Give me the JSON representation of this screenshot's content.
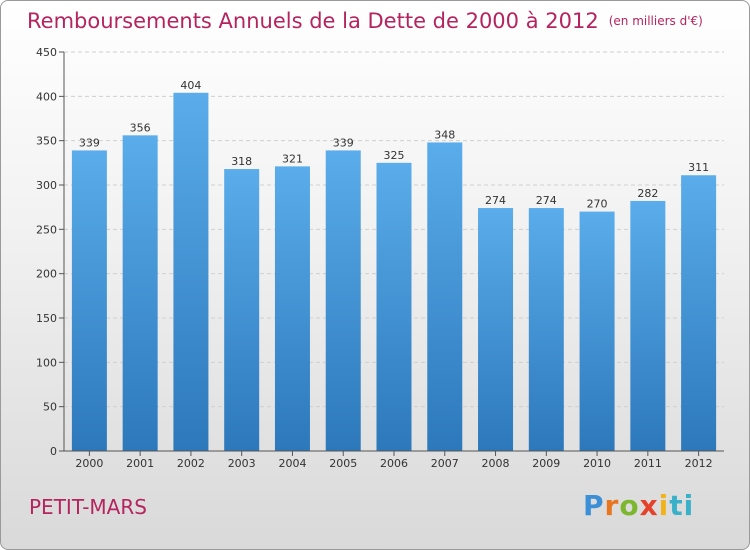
{
  "title": "Remboursements Annuels de la Dette de 2000 à 2012",
  "unit": "(en milliers d'€)",
  "city": "PETIT-MARS",
  "brand": {
    "letters": [
      "P",
      "r",
      "o",
      "x",
      "i",
      "ti"
    ]
  },
  "colors": {
    "title": "#b5245e",
    "bar_top": "#5aacea",
    "bar_bottom": "#2c78bb"
  },
  "chart_data": {
    "type": "bar",
    "categories": [
      "2000",
      "2001",
      "2002",
      "2003",
      "2004",
      "2005",
      "2006",
      "2007",
      "2008",
      "2009",
      "2010",
      "2011",
      "2012"
    ],
    "values": [
      339,
      356,
      404,
      318,
      321,
      339,
      325,
      348,
      274,
      274,
      270,
      282,
      311
    ],
    "ylim": [
      0,
      450
    ],
    "yticks": [
      0,
      50,
      100,
      150,
      200,
      250,
      300,
      350,
      400,
      450
    ],
    "grid": true,
    "data_labels": true
  }
}
